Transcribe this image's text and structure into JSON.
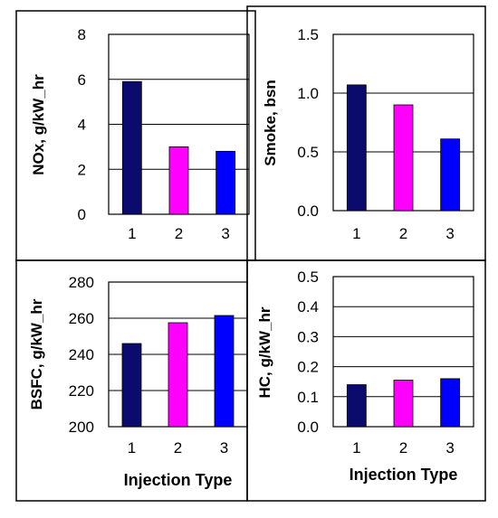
{
  "chart_data": [
    {
      "type": "bar",
      "categories": [
        "1",
        "2",
        "3"
      ],
      "values": [
        5.9,
        3.0,
        2.8
      ],
      "xlabel": "",
      "ylabel": "NOx, g/kW_hr",
      "ylim": [
        0,
        8
      ],
      "yticks": [
        "0",
        "2",
        "4",
        "6",
        "8"
      ],
      "grid": true,
      "colors": [
        "#0b0b6e",
        "#ff00ff",
        "#0000ff"
      ]
    },
    {
      "type": "bar",
      "categories": [
        "1",
        "2",
        "3"
      ],
      "values": [
        1.07,
        0.9,
        0.61
      ],
      "xlabel": "",
      "ylabel": "Smoke, bsn",
      "ylim": [
        0,
        1.5
      ],
      "yticks": [
        "0.0",
        "0.5",
        "1.0",
        "1.5"
      ],
      "grid": true,
      "colors": [
        "#0b0b6e",
        "#ff00ff",
        "#0000ff"
      ]
    },
    {
      "type": "bar",
      "categories": [
        "1",
        "2",
        "3"
      ],
      "values": [
        246,
        257.5,
        261.5
      ],
      "xlabel": "Injection Type",
      "ylabel": "BSFC, g/kW_hr",
      "ylim": [
        200,
        280
      ],
      "yticks": [
        "200",
        "220",
        "240",
        "260",
        "280"
      ],
      "grid": true,
      "colors": [
        "#0b0b6e",
        "#ff00ff",
        "#0000ff"
      ]
    },
    {
      "type": "bar",
      "categories": [
        "1",
        "2",
        "3"
      ],
      "values": [
        0.14,
        0.155,
        0.16
      ],
      "xlabel": "Injection Type",
      "ylabel": "HC, g/kW_hr",
      "ylim": [
        0,
        0.5
      ],
      "yticks": [
        "0.0",
        "0.1",
        "0.2",
        "0.3",
        "0.4",
        "0.5"
      ],
      "grid": true,
      "colors": [
        "#0b0b6e",
        "#ff00ff",
        "#0000ff"
      ]
    }
  ]
}
